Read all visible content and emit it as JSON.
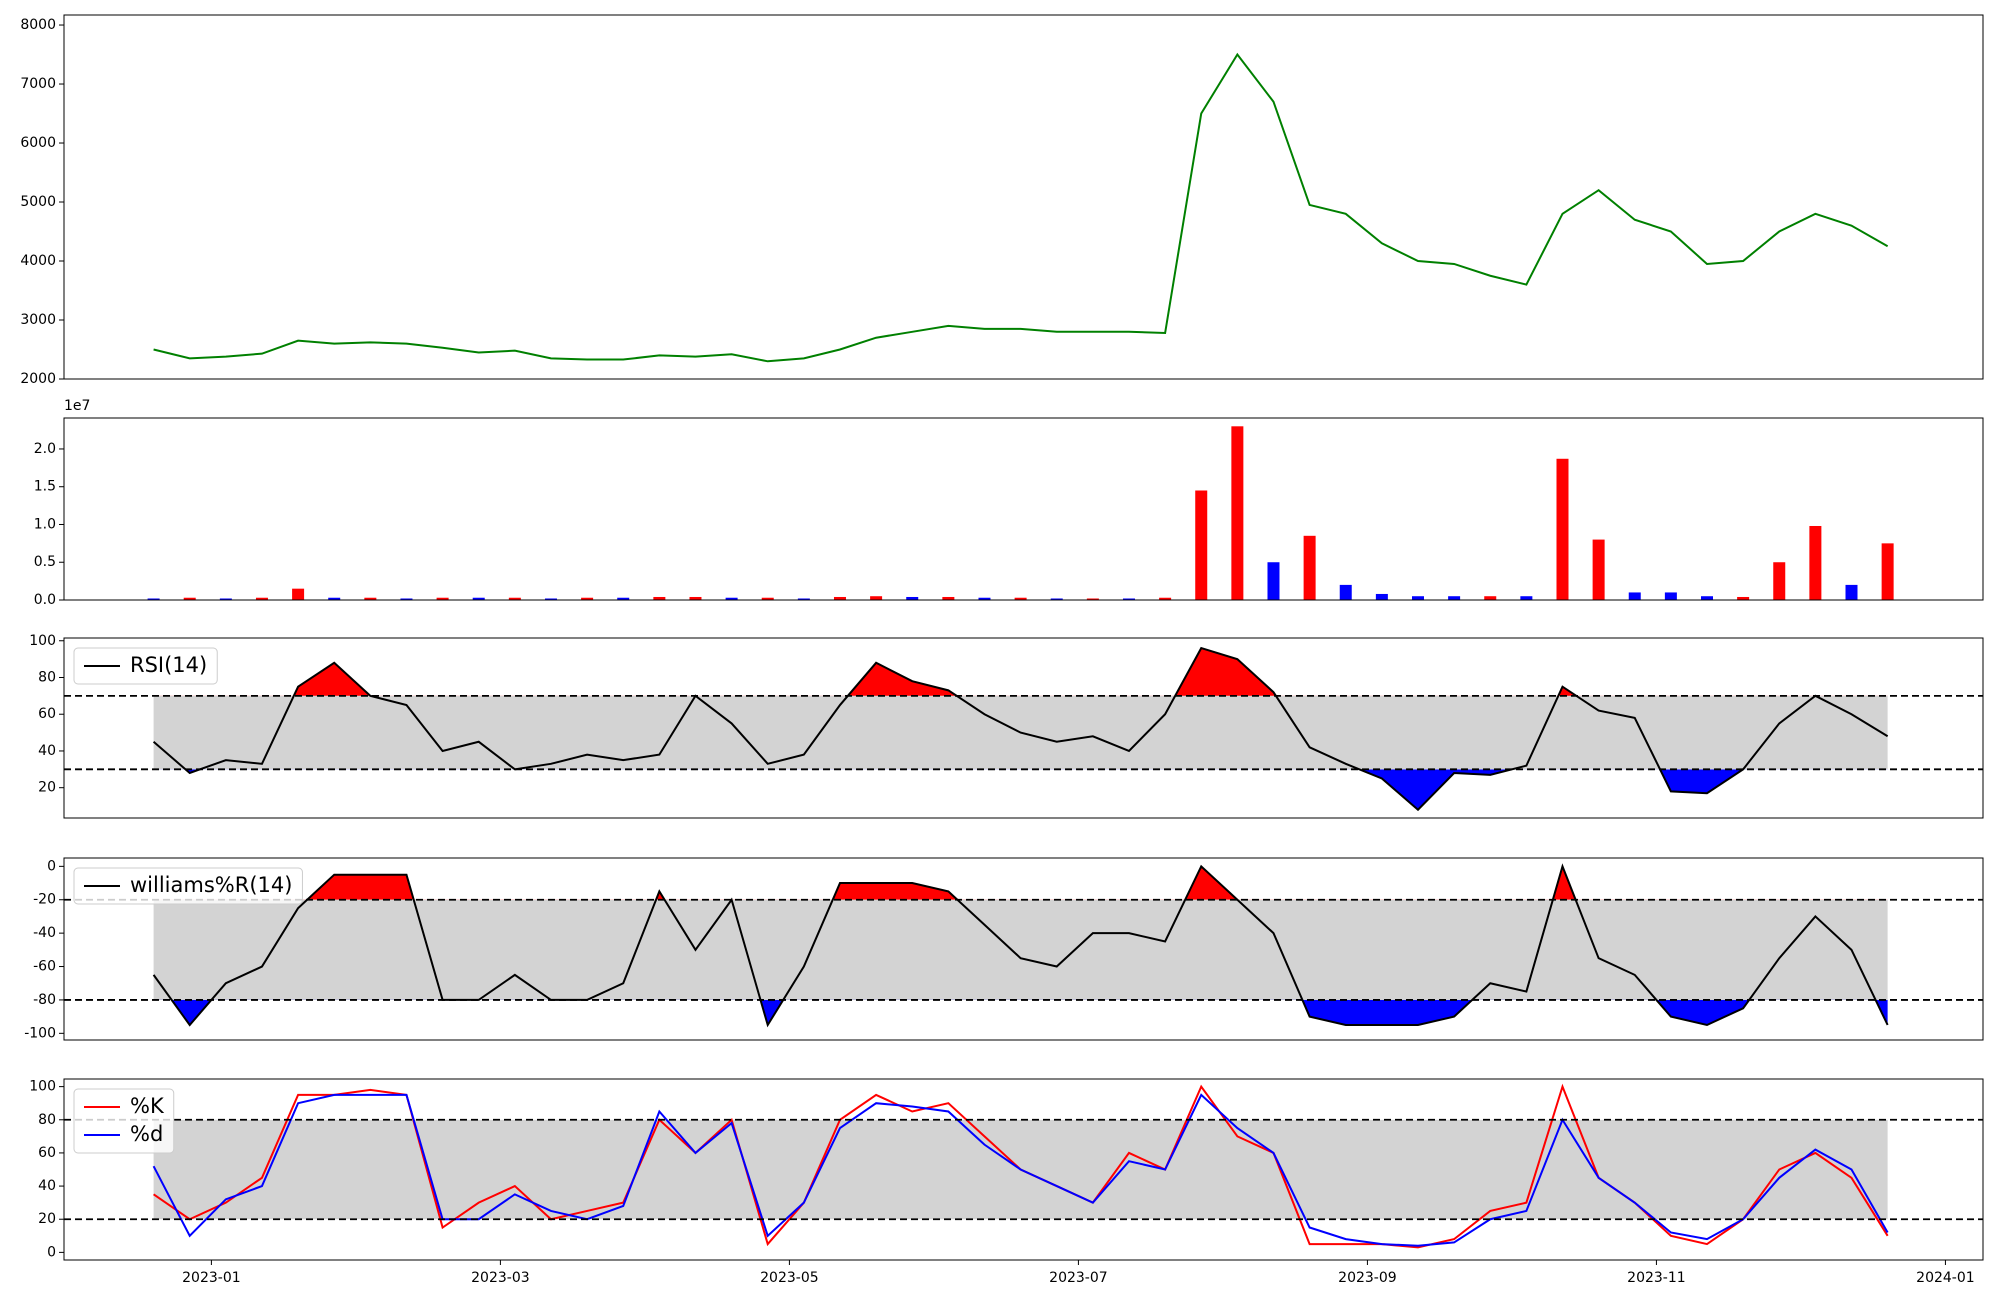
{
  "chart_data": [
    {
      "type": "line",
      "x": [
        0.6,
        0.85,
        1.1,
        1.35,
        1.6,
        1.85,
        2.1,
        2.35,
        2.6,
        2.85,
        3.1,
        3.35,
        3.6,
        3.85,
        4.1,
        4.35,
        4.6,
        4.85,
        5.1,
        5.35,
        5.6,
        5.85,
        6.1,
        6.35,
        6.6,
        6.85,
        7.1,
        7.35,
        7.6,
        7.85,
        8.1,
        8.35,
        8.6,
        8.85,
        9.1,
        9.35,
        9.6,
        9.85,
        10.1,
        10.35,
        10.6,
        10.85,
        11.1,
        11.35,
        11.6,
        11.85,
        12.1,
        12.35,
        12.6
      ],
      "series": [
        {
          "color": "#008000",
          "values": [
            2500,
            2350,
            2380,
            2430,
            2650,
            2600,
            2620,
            2600,
            2530,
            2450,
            2480,
            2350,
            2330,
            2330,
            2400,
            2380,
            2420,
            2300,
            2350,
            2500,
            2700,
            2800,
            2900,
            2850,
            2850,
            2800,
            2800,
            2800,
            2780,
            6500,
            7500,
            6700,
            4950,
            4800,
            4300,
            4000,
            3950,
            3750,
            3600,
            4800,
            5200,
            4700,
            4500,
            3950,
            4000,
            4500,
            4800,
            4600,
            4250
          ]
        }
      ],
      "xlim": [
        -0.02,
        13.26
      ],
      "ylim": [
        2000,
        8170
      ],
      "yticks": [
        2000,
        3000,
        4000,
        5000,
        6000,
        7000,
        8000
      ]
    },
    {
      "type": "bar",
      "offset_text": "1e7",
      "x": [
        0.6,
        0.85,
        1.1,
        1.35,
        1.6,
        1.85,
        2.1,
        2.35,
        2.6,
        2.85,
        3.1,
        3.35,
        3.6,
        3.85,
        4.1,
        4.35,
        4.6,
        4.85,
        5.1,
        5.35,
        5.6,
        5.85,
        6.1,
        6.35,
        6.6,
        6.85,
        7.1,
        7.35,
        7.6,
        7.85,
        8.1,
        8.35,
        8.6,
        8.85,
        9.1,
        9.35,
        9.6,
        9.85,
        10.1,
        10.35,
        10.6,
        10.85,
        11.1,
        11.35,
        11.6,
        11.85,
        12.1,
        12.35,
        12.6
      ],
      "values": [
        0.02,
        0.03,
        0.02,
        0.03,
        0.15,
        0.03,
        0.03,
        0.02,
        0.03,
        0.03,
        0.03,
        0.02,
        0.03,
        0.03,
        0.04,
        0.04,
        0.03,
        0.03,
        0.02,
        0.04,
        0.05,
        0.04,
        0.04,
        0.03,
        0.03,
        0.02,
        0.02,
        0.02,
        0.03,
        1.45,
        2.3,
        0.5,
        0.85,
        0.2,
        0.08,
        0.05,
        0.05,
        0.05,
        0.05,
        1.87,
        0.8,
        0.1,
        0.1,
        0.05,
        0.04,
        0.5,
        0.98,
        0.2,
        0.75
      ],
      "colors": [
        "#0000ff",
        "#ff0000",
        "#0000ff",
        "#ff0000",
        "#ff0000",
        "#0000ff",
        "#ff0000",
        "#0000ff",
        "#ff0000",
        "#0000ff",
        "#ff0000",
        "#0000ff",
        "#ff0000",
        "#0000ff",
        "#ff0000",
        "#ff0000",
        "#0000ff",
        "#ff0000",
        "#0000ff",
        "#ff0000",
        "#ff0000",
        "#0000ff",
        "#ff0000",
        "#0000ff",
        "#ff0000",
        "#0000ff",
        "#ff0000",
        "#0000ff",
        "#ff0000",
        "#ff0000",
        "#ff0000",
        "#0000ff",
        "#ff0000",
        "#0000ff",
        "#0000ff",
        "#0000ff",
        "#0000ff",
        "#ff0000",
        "#0000ff",
        "#ff0000",
        "#ff0000",
        "#0000ff",
        "#0000ff",
        "#0000ff",
        "#ff0000",
        "#ff0000",
        "#ff0000",
        "#0000ff",
        "#ff0000"
      ],
      "xlim": [
        -0.02,
        13.26
      ],
      "ylim": [
        0,
        2.41
      ],
      "yticks": [
        {
          "value": 0,
          "label": "0.0"
        },
        {
          "value": 0.5,
          "label": "0.5"
        },
        {
          "value": 1,
          "label": "1.0"
        },
        {
          "value": 1.5,
          "label": "1.5"
        },
        {
          "value": 2,
          "label": "2.0"
        }
      ]
    },
    {
      "type": "line",
      "legend": "upper left",
      "levels": [
        30,
        70
      ],
      "band_color": "#d3d3d3",
      "fill_colors": [
        "#0000ff",
        "#ff0000"
      ],
      "x": [
        0.6,
        0.85,
        1.1,
        1.35,
        1.6,
        1.85,
        2.1,
        2.35,
        2.6,
        2.85,
        3.1,
        3.35,
        3.6,
        3.85,
        4.1,
        4.35,
        4.6,
        4.85,
        5.1,
        5.35,
        5.6,
        5.85,
        6.1,
        6.35,
        6.6,
        6.85,
        7.1,
        7.35,
        7.6,
        7.85,
        8.1,
        8.35,
        8.6,
        8.85,
        9.1,
        9.35,
        9.6,
        9.85,
        10.1,
        10.35,
        10.6,
        10.85,
        11.1,
        11.35,
        11.6,
        11.85,
        12.1,
        12.35,
        12.6
      ],
      "series": [
        {
          "name": "RSI(14)",
          "color": "#000000",
          "values": [
            45,
            28,
            35,
            33,
            75,
            88,
            70,
            65,
            40,
            45,
            30,
            33,
            38,
            35,
            38,
            70,
            55,
            33,
            38,
            65,
            88,
            78,
            73,
            60,
            50,
            45,
            48,
            40,
            60,
            96,
            90,
            72,
            42,
            33,
            25,
            8,
            28,
            27,
            32,
            75,
            62,
            58,
            18,
            17,
            30,
            55,
            70,
            60,
            48
          ]
        }
      ],
      "xlim": [
        -0.02,
        13.26
      ],
      "ylim": [
        3.5,
        101.5
      ],
      "yticks": [
        20,
        40,
        60,
        80,
        100
      ]
    },
    {
      "type": "line",
      "legend": "upper left",
      "levels": [
        -80,
        -20
      ],
      "band_color": "#d3d3d3",
      "fill_colors": [
        "#0000ff",
        "#ff0000"
      ],
      "x": [
        0.6,
        0.85,
        1.1,
        1.35,
        1.6,
        1.85,
        2.1,
        2.35,
        2.6,
        2.85,
        3.1,
        3.35,
        3.6,
        3.85,
        4.1,
        4.35,
        4.6,
        4.85,
        5.1,
        5.35,
        5.6,
        5.85,
        6.1,
        6.35,
        6.6,
        6.85,
        7.1,
        7.35,
        7.6,
        7.85,
        8.1,
        8.35,
        8.6,
        8.85,
        9.1,
        9.35,
        9.6,
        9.85,
        10.1,
        10.35,
        10.6,
        10.85,
        11.1,
        11.35,
        11.6,
        11.85,
        12.1,
        12.35,
        12.6
      ],
      "series": [
        {
          "name": "williams%R(14)",
          "color": "#000000",
          "values": [
            -65,
            -95,
            -70,
            -60,
            -25,
            -5,
            -5,
            -5,
            -80,
            -80,
            -65,
            -80,
            -80,
            -70,
            -15,
            -50,
            -20,
            -95,
            -60,
            -10,
            -10,
            -10,
            -15,
            -35,
            -55,
            -60,
            -40,
            -40,
            -45,
            0,
            -20,
            -40,
            -90,
            -95,
            -95,
            -95,
            -90,
            -70,
            -75,
            0,
            -55,
            -65,
            -90,
            -95,
            -85,
            -55,
            -30,
            -50,
            -95
          ]
        }
      ],
      "xlim": [
        -0.02,
        13.26
      ],
      "ylim": [
        -104,
        5
      ],
      "yticks": [
        -100,
        -80,
        -60,
        -40,
        -20,
        0
      ]
    },
    {
      "type": "line",
      "legend": "upper left",
      "levels": [
        20,
        80
      ],
      "band_color": "#d3d3d3",
      "x": [
        0.6,
        0.85,
        1.1,
        1.35,
        1.6,
        1.85,
        2.1,
        2.35,
        2.6,
        2.85,
        3.1,
        3.35,
        3.6,
        3.85,
        4.1,
        4.35,
        4.6,
        4.85,
        5.1,
        5.35,
        5.6,
        5.85,
        6.1,
        6.35,
        6.6,
        6.85,
        7.1,
        7.35,
        7.6,
        7.85,
        8.1,
        8.35,
        8.6,
        8.85,
        9.1,
        9.35,
        9.6,
        9.85,
        10.1,
        10.35,
        10.6,
        10.85,
        11.1,
        11.35,
        11.6,
        11.85,
        12.1,
        12.35,
        12.6
      ],
      "series": [
        {
          "name": "%K",
          "color": "#ff0000",
          "values": [
            35,
            20,
            30,
            45,
            95,
            95,
            98,
            95,
            15,
            30,
            40,
            20,
            25,
            30,
            80,
            60,
            80,
            5,
            30,
            80,
            95,
            85,
            90,
            70,
            50,
            40,
            30,
            60,
            50,
            100,
            70,
            60,
            5,
            5,
            5,
            3,
            8,
            25,
            30,
            100,
            45,
            30,
            10,
            5,
            20,
            50,
            60,
            45,
            10
          ]
        },
        {
          "name": "%d",
          "color": "#0000ff",
          "values": [
            52,
            10,
            32,
            40,
            90,
            95,
            95,
            95,
            20,
            20,
            35,
            25,
            20,
            28,
            85,
            60,
            78,
            10,
            30,
            75,
            90,
            88,
            85,
            65,
            50,
            40,
            30,
            55,
            50,
            95,
            75,
            60,
            15,
            8,
            5,
            4,
            6,
            20,
            25,
            80,
            45,
            30,
            12,
            8,
            20,
            45,
            62,
            50,
            12
          ]
        }
      ],
      "xlim": [
        -0.02,
        13.26
      ],
      "ylim": [
        -4.6,
        104.6
      ],
      "yticks": [
        0,
        20,
        40,
        60,
        80,
        100
      ],
      "xticks": [
        {
          "value": 1,
          "label": "2023-01"
        },
        {
          "value": 3,
          "label": "2023-03"
        },
        {
          "value": 5,
          "label": "2023-05"
        },
        {
          "value": 7,
          "label": "2023-07"
        },
        {
          "value": 9,
          "label": "2023-09"
        },
        {
          "value": 11,
          "label": "2023-11"
        },
        {
          "value": 13,
          "label": "2024-01"
        }
      ]
    }
  ]
}
